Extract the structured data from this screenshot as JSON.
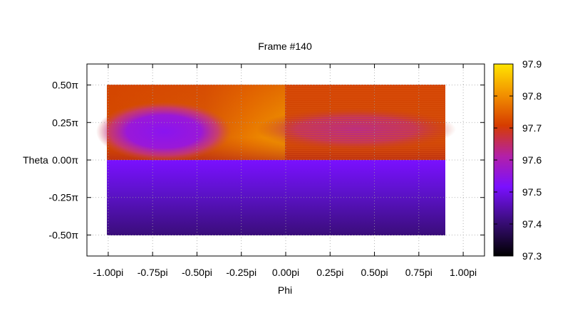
{
  "chart_data": {
    "type": "heatmap",
    "title": "Frame #140",
    "xlabel": "Phi",
    "ylabel": "Theta",
    "x_ticks": [
      "-1.00pi",
      "-0.75pi",
      "-0.50pi",
      "-0.25pi",
      "0.00pi",
      "0.25pi",
      "0.50pi",
      "0.75pi",
      "1.00pi"
    ],
    "x_tick_values": [
      -1.0,
      -0.75,
      -0.5,
      -0.25,
      0.0,
      0.25,
      0.5,
      0.75,
      1.0
    ],
    "y_ticks": [
      "0.50π",
      "0.25π",
      "0.00π",
      "-0.25π",
      "-0.50π"
    ],
    "y_tick_values": [
      0.5,
      0.25,
      0.0,
      -0.25,
      -0.5
    ],
    "xlim": [
      -1.12,
      1.12
    ],
    "ylim": [
      -0.64,
      0.64
    ],
    "data_extent": {
      "x": [
        -1.0,
        0.9
      ],
      "y": [
        -0.5,
        0.5
      ]
    },
    "grid": true,
    "colorbar": {
      "ticks": [
        "97.9",
        "97.8",
        "97.7",
        "97.6",
        "97.5",
        "97.4",
        "97.3"
      ],
      "tick_values": [
        97.9,
        97.8,
        97.7,
        97.6,
        97.5,
        97.4,
        97.3
      ],
      "range": [
        97.3,
        97.9
      ],
      "palette": [
        "#000000",
        "#3a0d7a",
        "#7a10ff",
        "#b320a8",
        "#d63c00",
        "#f29000",
        "#ffe400"
      ]
    },
    "regions": [
      {
        "x": [
          -1.0,
          0.0
        ],
        "y": [
          0.0,
          0.5
        ],
        "value": 97.66,
        "note": "orange"
      },
      {
        "x": [
          -0.95,
          -0.35
        ],
        "y": [
          0.05,
          0.4
        ],
        "value": 97.49,
        "note": "purple blob"
      },
      {
        "x": [
          0.0,
          0.9
        ],
        "y": [
          0.0,
          0.5
        ],
        "value": 97.63,
        "note": "striped"
      },
      {
        "x": [
          -1.0,
          0.9
        ],
        "y": [
          -0.5,
          0.0
        ],
        "value": 97.42,
        "note": "purple gradient"
      }
    ]
  }
}
